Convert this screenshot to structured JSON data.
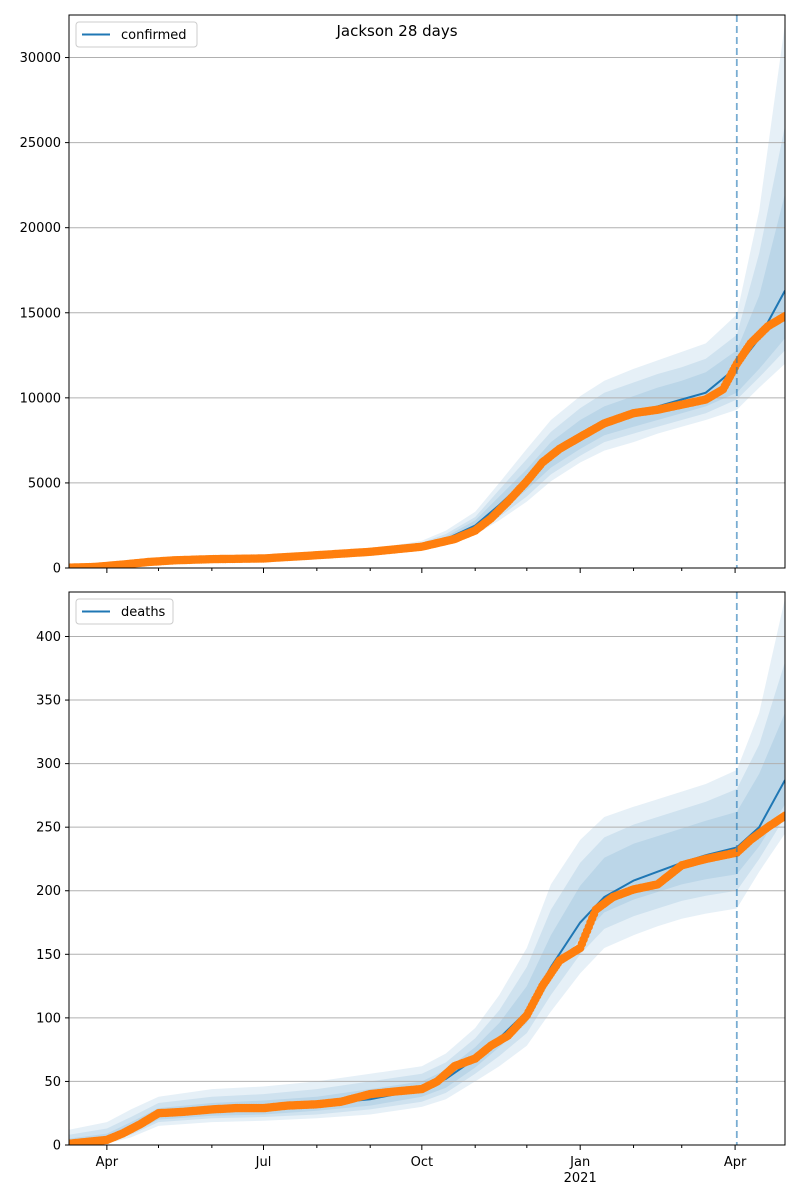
{
  "title": "Jackson 28 days",
  "x_tick_labels": [
    "Apr",
    "Jul",
    "Oct",
    "Jan",
    "Apr"
  ],
  "x_year_label": "2021",
  "colors": {
    "model_line": "#1f77b4",
    "observed": "#ff7f0e",
    "band": "#1f77b4",
    "forecast_marker": "#1f77b4",
    "grid": "#b0b0b0"
  },
  "chart_data": [
    {
      "type": "line",
      "legend": "confirmed",
      "legend_position": "top-left",
      "grid": "horizontal",
      "x_range": [
        "2020-03-10",
        "2021-04-30"
      ],
      "ylim": [
        0,
        32500
      ],
      "yticks": [
        0,
        5000,
        10000,
        15000,
        20000,
        25000,
        30000
      ],
      "forecast_start": "2021-04-02",
      "model": {
        "x": [
          "2020-03-10",
          "2020-04-01",
          "2020-05-01",
          "2020-06-01",
          "2020-07-01",
          "2020-08-01",
          "2020-09-01",
          "2020-10-01",
          "2020-10-15",
          "2020-11-01",
          "2020-11-15",
          "2020-12-01",
          "2020-12-15",
          "2021-01-01",
          "2021-01-15",
          "2021-02-01",
          "2021-02-15",
          "2021-03-01",
          "2021-03-15",
          "2021-04-02",
          "2021-04-15",
          "2021-04-30"
        ],
        "y": [
          50,
          150,
          400,
          500,
          550,
          700,
          900,
          1300,
          1700,
          2500,
          3700,
          5200,
          6600,
          7800,
          8600,
          9100,
          9500,
          9900,
          10300,
          11800,
          13500,
          16300
        ],
        "bands": [
          {
            "upper": [
              110,
              220,
              500,
              620,
              680,
              850,
              1100,
              1600,
              2200,
              3300,
              5000,
              7000,
              8700,
              10100,
              11000,
              11700,
              12200,
              12700,
              13200,
              14900,
              21000,
              32000
            ],
            "lower": [
              30,
              100,
              320,
              420,
              470,
              600,
              760,
              1050,
              1350,
              1950,
              2800,
              3900,
              5100,
              6200,
              6900,
              7400,
              7900,
              8300,
              8700,
              9300,
              10600,
              12000
            ]
          },
          {
            "upper": [
              90,
              200,
              470,
              580,
              640,
              800,
              1040,
              1500,
              2000,
              3000,
              4600,
              6400,
              8000,
              9400,
              10300,
              10900,
              11400,
              11800,
              12300,
              13700,
              18500,
              26000
            ],
            "lower": [
              35,
              110,
              340,
              440,
              490,
              620,
              790,
              1100,
              1420,
              2100,
              3000,
              4200,
              5500,
              6600,
              7400,
              7900,
              8300,
              8700,
              9100,
              9900,
              11200,
              12800
            ]
          },
          {
            "upper": [
              75,
              180,
              440,
              550,
              600,
              760,
              980,
              1420,
              1850,
              2800,
              4200,
              5800,
              7400,
              8700,
              9500,
              10100,
              10600,
              11000,
              11500,
              12800,
              16000,
              22000
            ],
            "lower": [
              40,
              125,
              360,
              460,
              510,
              650,
              820,
              1180,
              1550,
              2250,
              3250,
              4600,
              5900,
              7000,
              7800,
              8300,
              8700,
              9100,
              9500,
              10300,
              11700,
              13500
            ]
          }
        ]
      },
      "observed": {
        "x": [
          "2020-03-10",
          "2020-03-25",
          "2020-04-10",
          "2020-04-25",
          "2020-05-10",
          "2020-06-01",
          "2020-07-01",
          "2020-08-01",
          "2020-09-01",
          "2020-10-01",
          "2020-10-20",
          "2020-11-01",
          "2020-11-10",
          "2020-11-20",
          "2020-12-01",
          "2020-12-10",
          "2020-12-20",
          "2021-01-01",
          "2021-01-15",
          "2021-02-01",
          "2021-02-15",
          "2021-03-01",
          "2021-03-15",
          "2021-03-25",
          "2021-04-02",
          "2021-04-10",
          "2021-04-20",
          "2021-04-30"
        ],
        "y": [
          20,
          60,
          200,
          350,
          450,
          520,
          560,
          750,
          950,
          1250,
          1700,
          2200,
          2900,
          3900,
          5100,
          6200,
          7000,
          7700,
          8500,
          9100,
          9300,
          9600,
          9900,
          10500,
          12000,
          13200,
          14200,
          14800
        ]
      }
    },
    {
      "type": "line",
      "legend": "deaths",
      "legend_position": "top-left",
      "grid": "horizontal",
      "x_range": [
        "2020-03-10",
        "2021-04-30"
      ],
      "ylim": [
        0,
        435
      ],
      "yticks": [
        0,
        50,
        100,
        150,
        200,
        250,
        300,
        350,
        400
      ],
      "forecast_start": "2021-04-02",
      "model": {
        "x": [
          "2020-03-10",
          "2020-04-01",
          "2020-04-15",
          "2020-05-01",
          "2020-06-01",
          "2020-07-01",
          "2020-08-01",
          "2020-09-01",
          "2020-10-01",
          "2020-10-15",
          "2020-11-01",
          "2020-11-15",
          "2020-12-01",
          "2020-12-15",
          "2021-01-01",
          "2021-01-15",
          "2021-02-01",
          "2021-02-15",
          "2021-03-01",
          "2021-03-15",
          "2021-04-02",
          "2021-04-15",
          "2021-04-30"
        ],
        "y": [
          1,
          4,
          12,
          24,
          28,
          29,
          32,
          36,
          44,
          52,
          68,
          84,
          105,
          140,
          175,
          195,
          208,
          215,
          222,
          228,
          234,
          250,
          287
        ],
        "bands": [
          {
            "upper": [
              12,
              18,
              28,
              38,
              44,
              46,
              50,
              56,
              62,
              72,
              92,
              118,
              155,
              205,
              240,
              258,
              266,
              272,
              278,
              284,
              295,
              340,
              430
            ],
            "lower": [
              0,
              1,
              6,
              15,
              18,
              19,
              21,
              24,
              30,
              36,
              50,
              62,
              78,
              105,
              135,
              155,
              165,
              172,
              178,
              182,
              186,
              215,
              245
            ]
          },
          {
            "upper": [
              8,
              13,
              22,
              33,
              38,
              40,
              44,
              50,
              56,
              65,
              84,
              106,
              140,
              185,
              222,
              242,
              252,
              258,
              264,
              270,
              280,
              315,
              380
            ],
            "lower": [
              0,
              2,
              8,
              18,
              21,
              22,
              24,
              28,
              34,
              41,
              56,
              70,
              88,
              118,
              150,
              170,
              180,
              186,
              192,
              196,
              200,
              225,
              258
            ]
          },
          {
            "upper": [
              5,
              9,
              18,
              29,
              33,
              35,
              38,
              44,
              50,
              59,
              77,
              96,
              125,
              165,
              204,
              226,
              237,
              243,
              249,
              255,
              262,
              292,
              340
            ],
            "lower": [
              0,
              3,
              9,
              20,
              23,
              24,
              27,
              31,
              38,
              45,
              61,
              77,
              96,
              130,
              163,
              183,
              193,
              199,
              205,
              209,
              213,
              235,
              268
            ]
          }
        ]
      },
      "observed": {
        "x": [
          "2020-03-10",
          "2020-04-01",
          "2020-04-10",
          "2020-04-20",
          "2020-05-01",
          "2020-05-15",
          "2020-06-01",
          "2020-06-15",
          "2020-07-01",
          "2020-07-15",
          "2020-08-01",
          "2020-08-15",
          "2020-09-01",
          "2020-09-15",
          "2020-10-01",
          "2020-10-10",
          "2020-10-20",
          "2020-11-01",
          "2020-11-10",
          "2020-11-20",
          "2020-12-01",
          "2020-12-10",
          "2020-12-20",
          "2021-01-01",
          "2021-01-10",
          "2021-01-20",
          "2021-02-01",
          "2021-02-15",
          "2021-03-01",
          "2021-03-15",
          "2021-04-02",
          "2021-04-10",
          "2021-04-20",
          "2021-04-30"
        ],
        "y": [
          1,
          4,
          9,
          16,
          25,
          26,
          28,
          29,
          29,
          31,
          32,
          34,
          40,
          42,
          44,
          50,
          62,
          68,
          78,
          86,
          102,
          125,
          145,
          155,
          185,
          195,
          201,
          205,
          220,
          225,
          230,
          240,
          250,
          259
        ]
      }
    }
  ]
}
